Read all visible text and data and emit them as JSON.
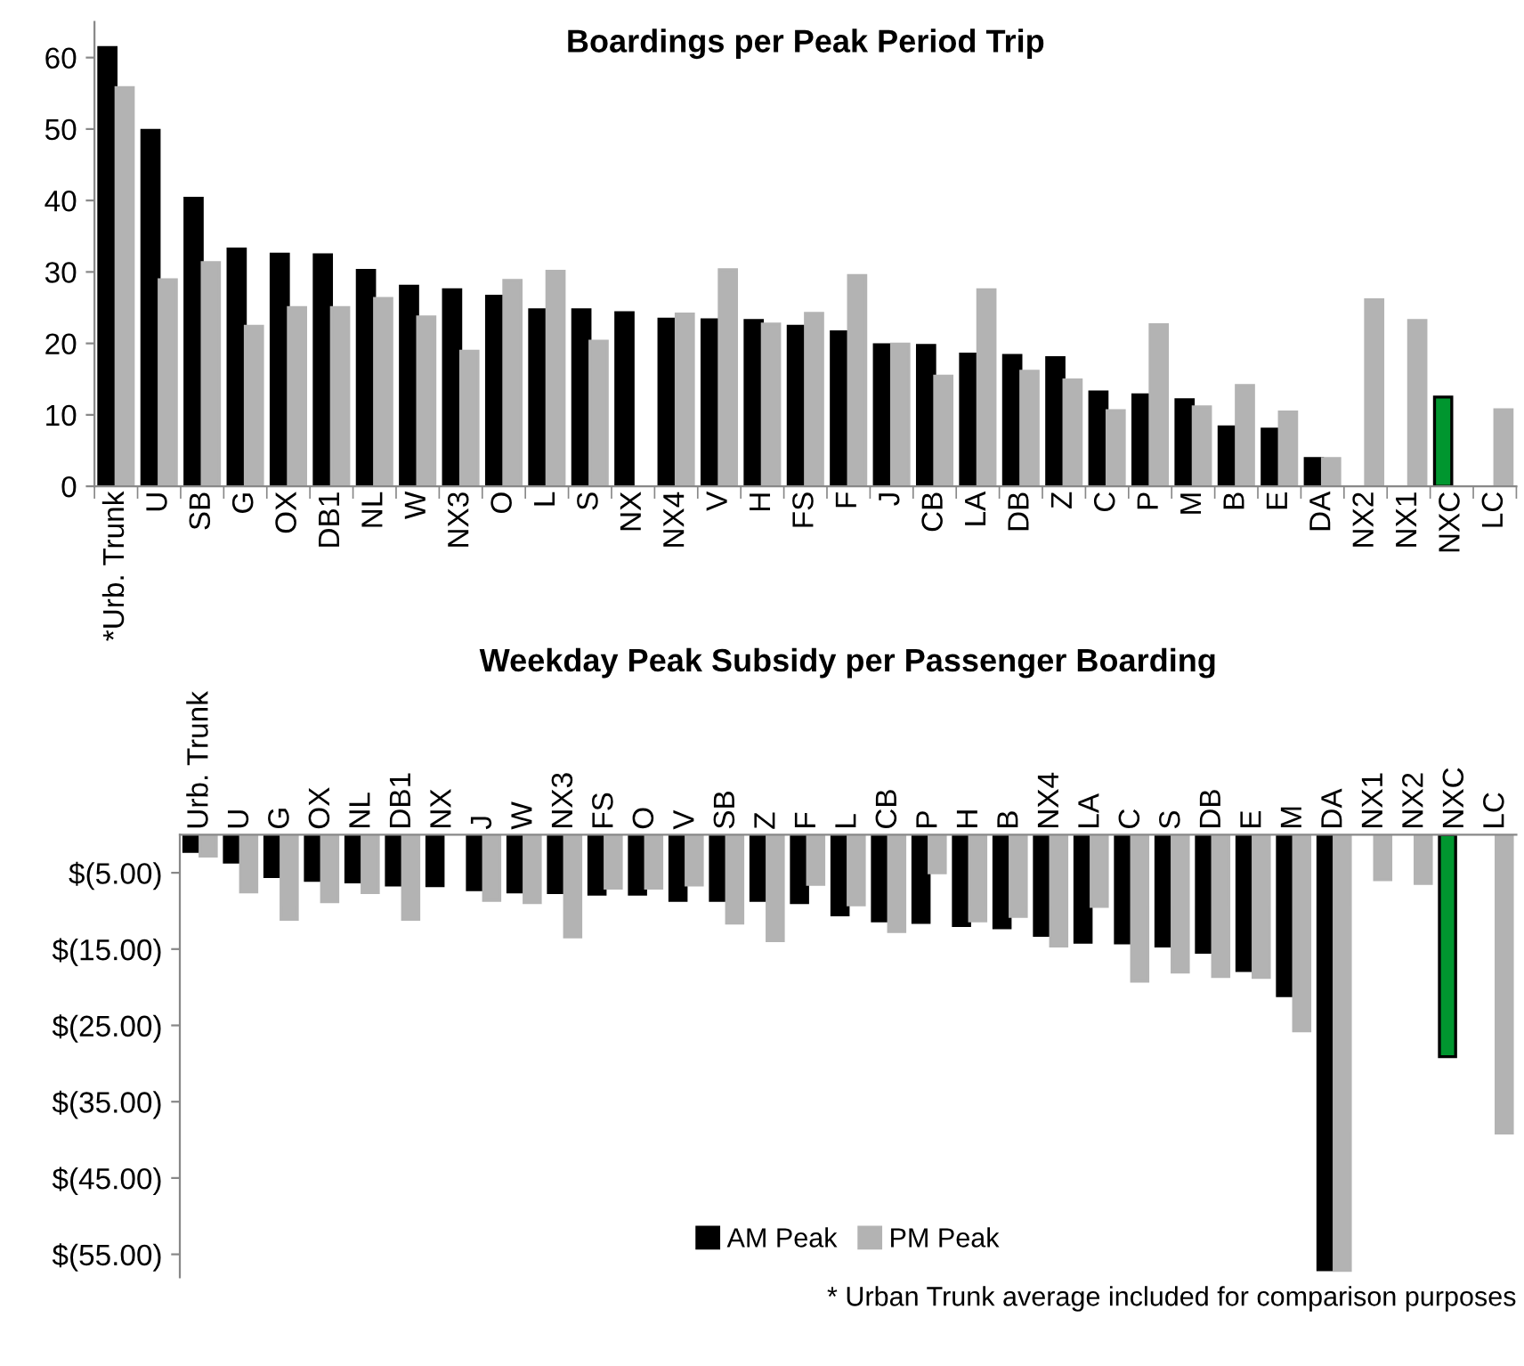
{
  "chart_data": [
    {
      "type": "bar",
      "title": "Boardings per Peak Period Trip",
      "categories": [
        "*Urb. Trunk",
        "U",
        "SB",
        "G",
        "OX",
        "DB1",
        "NL",
        "W",
        "NX3",
        "O",
        "L",
        "S",
        "NX",
        "NX4",
        "V",
        "H",
        "FS",
        "F",
        "J",
        "CB",
        "LA",
        "DB",
        "Z",
        "C",
        "P",
        "M",
        "B",
        "E",
        "DA",
        "NX2",
        "NX1",
        "NXC",
        "LC"
      ],
      "series": [
        {
          "color": "#000000",
          "colors": [
            "#000000",
            "#000000",
            "#000000",
            "#000000",
            "#000000",
            "#000000",
            "#000000",
            "#000000",
            "#000000",
            "#000000",
            "#000000",
            "#000000",
            "#000000",
            "#000000",
            "#000000",
            "#000000",
            "#000000",
            "#000000",
            "#000000",
            "#000000",
            "#000000",
            "#000000",
            "#000000",
            "#000000",
            "#000000",
            "#000000",
            "#000000",
            "#000000",
            "#000000",
            "#000000",
            "#000000",
            "#00962f",
            "#000000"
          ],
          "values": [
            61.4,
            49.8,
            40.3,
            33.2,
            32.5,
            32.4,
            30.2,
            28.0,
            27.5,
            26.6,
            24.7,
            24.7,
            24.3,
            23.4,
            23.3,
            23.2,
            22.4,
            21.6,
            19.8,
            19.7,
            18.5,
            18.3,
            18.0,
            13.2,
            12.8,
            12.1,
            8.3,
            8.0,
            3.9,
            null,
            null,
            12.5,
            null
          ]
        },
        {
          "color": "#b3b3b3",
          "values": [
            55.8,
            28.9,
            31.3,
            22.4,
            25.0,
            25.0,
            26.3,
            23.7,
            18.9,
            28.8,
            30.1,
            20.3,
            null,
            24.1,
            30.3,
            22.7,
            24.2,
            29.5,
            19.9,
            15.4,
            27.5,
            16.1,
            14.9,
            10.6,
            22.6,
            11.1,
            14.1,
            10.4,
            3.9,
            26.1,
            23.2,
            null,
            10.7
          ]
        }
      ],
      "ylim": [
        0,
        65
      ],
      "yticks": [
        0,
        10,
        20,
        30,
        40,
        50,
        60
      ],
      "grid": false,
      "legend": false
    },
    {
      "type": "bar",
      "title": "Weekday Peak Subsidy per Passenger Boarding",
      "categories": [
        "Urb. Trunk",
        "U",
        "G",
        "OX",
        "NL",
        "DB1",
        "NX",
        "J",
        "W",
        "NX3",
        "FS",
        "O",
        "V",
        "SB",
        "Z",
        "F",
        "L",
        "CB",
        "P",
        "H",
        "B",
        "NX4",
        "LA",
        "C",
        "S",
        "DB",
        "E",
        "M",
        "DA",
        "NX1",
        "NX2",
        "NXC",
        "LC"
      ],
      "series": [
        {
          "name": "AM Peak",
          "color": "#000000",
          "colors": [
            "#000000",
            "#000000",
            "#000000",
            "#000000",
            "#000000",
            "#000000",
            "#000000",
            "#000000",
            "#000000",
            "#000000",
            "#000000",
            "#000000",
            "#000000",
            "#000000",
            "#000000",
            "#000000",
            "#000000",
            "#000000",
            "#000000",
            "#000000",
            "#000000",
            "#000000",
            "#000000",
            "#000000",
            "#000000",
            "#000000",
            "#000000",
            "#000000",
            "#000000",
            "#000000",
            "#000000",
            "#00962f",
            "#000000"
          ],
          "values": [
            -2.2,
            -3.6,
            -5.5,
            -6.0,
            -6.2,
            -6.6,
            -6.7,
            -7.2,
            -7.5,
            -7.6,
            -7.8,
            -7.8,
            -8.6,
            -8.6,
            -8.6,
            -8.9,
            -10.5,
            -11.3,
            -11.5,
            -11.9,
            -12.2,
            -13.2,
            -14.1,
            -14.2,
            -14.6,
            -15.4,
            -17.8,
            -21.1,
            -57.0,
            null,
            null,
            -29.1,
            null
          ]
        },
        {
          "name": "PM Peak",
          "color": "#b3b3b3",
          "values": [
            -2.8,
            -7.5,
            -11.1,
            -8.8,
            -7.6,
            -11.1,
            null,
            -8.6,
            -8.9,
            -13.4,
            -7.0,
            -7.0,
            -6.6,
            -11.6,
            -13.9,
            -6.5,
            -9.2,
            -12.7,
            -5.0,
            -11.3,
            -10.7,
            -14.6,
            -9.4,
            -19.2,
            -18.0,
            -18.6,
            -18.7,
            -25.7,
            -57.1,
            -5.9,
            -6.4,
            null,
            -39.1
          ]
        }
      ],
      "ylim": [
        -58,
        0
      ],
      "yticks": [
        {
          "value": -5,
          "label": "$(5.00)"
        },
        {
          "value": -15,
          "label": "$(15.00)"
        },
        {
          "value": -25,
          "label": "$(25.00)"
        },
        {
          "value": -35,
          "label": "$(35.00)"
        },
        {
          "value": -45,
          "label": "$(45.00)"
        },
        {
          "value": -55,
          "label": "$(55.00)"
        }
      ],
      "grid": false,
      "legend": "bottom",
      "annotations": [
        "* Urban Trunk average included for comparison purposes"
      ]
    }
  ]
}
